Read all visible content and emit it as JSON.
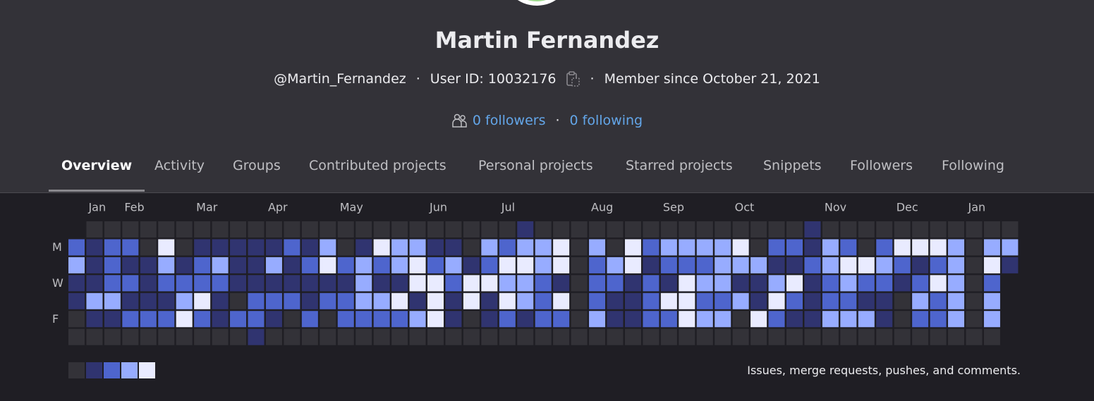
{
  "profile": {
    "name": "Martin Fernandez",
    "username": "@Martin_Fernandez",
    "user_id": "User ID: 10032176",
    "member_since": "Member since October 21, 2021",
    "followers": "0 followers",
    "following": "0 following"
  },
  "tabs": [
    "Overview",
    "Activity",
    "Groups",
    "Contributed projects",
    "Personal projects",
    "Starred projects",
    "Snippets",
    "Followers",
    "Following"
  ],
  "active_tab": 0,
  "chart_data": {
    "type": "calendar_heatmap",
    "months": [
      "Jan",
      "Feb",
      "Mar",
      "Apr",
      "May",
      "Jun",
      "Jul",
      "Aug",
      "Sep",
      "Oct",
      "Nov",
      "Dec",
      "Jan"
    ],
    "weekdays": [
      "M",
      "W",
      "F"
    ],
    "colors": [
      "#333238",
      "#303470",
      "#4e65cd",
      "#97acff",
      "#e9ebff"
    ],
    "caption": "Issues, merge requests, pushes, and comments.",
    "weeks": [
      [
        null,
        2,
        3,
        1,
        1,
        0,
        0
      ],
      [
        0,
        1,
        1,
        1,
        3,
        1,
        0
      ],
      [
        0,
        2,
        2,
        2,
        3,
        1,
        0
      ],
      [
        0,
        2,
        1,
        2,
        1,
        2,
        0
      ],
      [
        0,
        0,
        1,
        1,
        1,
        2,
        0
      ],
      [
        0,
        4,
        3,
        2,
        1,
        2,
        0
      ],
      [
        0,
        0,
        1,
        2,
        3,
        4,
        0
      ],
      [
        0,
        1,
        2,
        2,
        4,
        2,
        0
      ],
      [
        0,
        1,
        3,
        2,
        1,
        1,
        0
      ],
      [
        0,
        1,
        1,
        1,
        0,
        2,
        0
      ],
      [
        0,
        1,
        1,
        1,
        2,
        2,
        1
      ],
      [
        0,
        1,
        3,
        1,
        2,
        1,
        0
      ],
      [
        0,
        2,
        1,
        1,
        2,
        0,
        0
      ],
      [
        0,
        1,
        2,
        1,
        1,
        2,
        0
      ],
      [
        0,
        3,
        4,
        1,
        2,
        0,
        0
      ],
      [
        0,
        0,
        2,
        1,
        2,
        2,
        0
      ],
      [
        0,
        1,
        3,
        3,
        3,
        2,
        0
      ],
      [
        0,
        4,
        2,
        1,
        3,
        2,
        0
      ],
      [
        0,
        3,
        3,
        1,
        4,
        2,
        0
      ],
      [
        0,
        3,
        4,
        4,
        1,
        3,
        0
      ],
      [
        0,
        1,
        2,
        4,
        4,
        4,
        0
      ],
      [
        0,
        1,
        3,
        2,
        1,
        1,
        0
      ],
      [
        0,
        0,
        1,
        4,
        4,
        0,
        0
      ],
      [
        0,
        3,
        2,
        4,
        1,
        1,
        0
      ],
      [
        0,
        2,
        4,
        3,
        4,
        2,
        0
      ],
      [
        1,
        3,
        4,
        3,
        3,
        1,
        0
      ],
      [
        0,
        3,
        3,
        2,
        2,
        2,
        0
      ],
      [
        0,
        4,
        4,
        1,
        4,
        2,
        0
      ],
      [
        0,
        0,
        0,
        0,
        0,
        0,
        0
      ],
      [
        0,
        3,
        2,
        2,
        2,
        3,
        0
      ],
      [
        0,
        0,
        3,
        2,
        1,
        1,
        0
      ],
      [
        0,
        4,
        4,
        1,
        1,
        1,
        0
      ],
      [
        0,
        2,
        1,
        2,
        2,
        2,
        0
      ],
      [
        0,
        3,
        2,
        1,
        4,
        2,
        0
      ],
      [
        0,
        3,
        2,
        4,
        4,
        4,
        0
      ],
      [
        0,
        3,
        2,
        3,
        2,
        3,
        0
      ],
      [
        0,
        3,
        3,
        3,
        2,
        3,
        0
      ],
      [
        0,
        4,
        3,
        1,
        3,
        0,
        0
      ],
      [
        0,
        0,
        3,
        1,
        1,
        4,
        0
      ],
      [
        0,
        2,
        1,
        3,
        4,
        2,
        0
      ],
      [
        0,
        2,
        1,
        4,
        2,
        1,
        0
      ],
      [
        1,
        1,
        2,
        1,
        1,
        1,
        0
      ],
      [
        0,
        3,
        3,
        2,
        2,
        3,
        0
      ],
      [
        0,
        2,
        4,
        3,
        2,
        3,
        0
      ],
      [
        0,
        0,
        4,
        2,
        1,
        3,
        0
      ],
      [
        0,
        2,
        3,
        2,
        1,
        1,
        0
      ],
      [
        0,
        4,
        2,
        1,
        0,
        0,
        0
      ],
      [
        0,
        4,
        1,
        2,
        3,
        2,
        0
      ],
      [
        0,
        4,
        2,
        4,
        2,
        2,
        0
      ],
      [
        0,
        3,
        3,
        3,
        3,
        3,
        0
      ],
      [
        0,
        0,
        0,
        0,
        0,
        0,
        0
      ],
      [
        0,
        3,
        4,
        2,
        3,
        3,
        0
      ],
      [
        0,
        3,
        1,
        null,
        null,
        null,
        null
      ]
    ]
  }
}
